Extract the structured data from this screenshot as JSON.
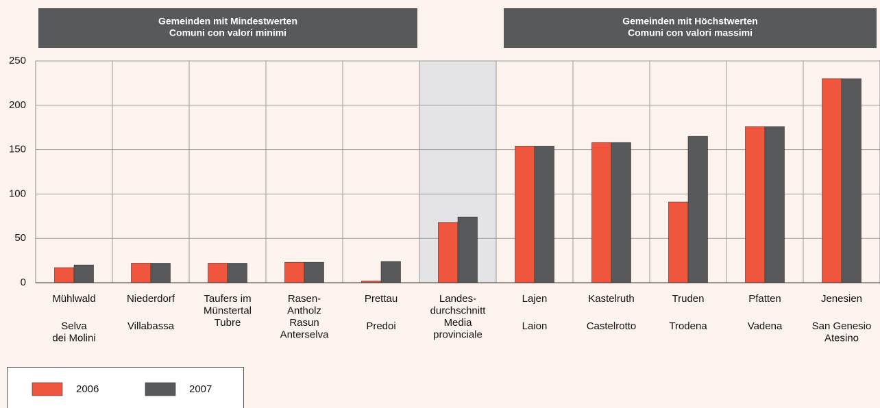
{
  "chart_data": {
    "type": "bar",
    "headers": [
      {
        "lines": [
          "Gemeinden mit Mindestwerten",
          "Comuni con valori minimi"
        ]
      },
      {
        "lines": [
          "Gemeinden mit Höchstwerten",
          "Comuni con valori massimi"
        ]
      }
    ],
    "categories": [
      {
        "de": [
          "Mühlwald"
        ],
        "it": [
          "Selva",
          "dei Molini"
        ]
      },
      {
        "de": [
          "Niederdorf"
        ],
        "it": [
          "Villabassa"
        ]
      },
      {
        "de": [
          "Taufers im",
          "Münstertal"
        ],
        "it": [
          "Tubre"
        ]
      },
      {
        "de": [
          "Rasen-",
          "Antholz"
        ],
        "it": [
          "Rasun",
          "Anterselva"
        ]
      },
      {
        "de": [
          "Prettau"
        ],
        "it": [
          "Predoi"
        ]
      },
      {
        "de": [
          "Landes-",
          "durchschnitt"
        ],
        "it": [
          "Media",
          "provinciale"
        ]
      },
      {
        "de": [
          "Lajen"
        ],
        "it": [
          "Laion"
        ]
      },
      {
        "de": [
          "Kastelruth"
        ],
        "it": [
          "Castelrotto"
        ]
      },
      {
        "de": [
          "Truden"
        ],
        "it": [
          "Trodena"
        ]
      },
      {
        "de": [
          "Pfatten"
        ],
        "it": [
          "Vadena"
        ]
      },
      {
        "de": [
          "Jenesien"
        ],
        "it": [
          "San Genesio",
          "Atesino"
        ]
      }
    ],
    "highlight_category": 5,
    "highlight_color": "#e4e4e7",
    "series": [
      {
        "name": "2006",
        "color": "#f0553d",
        "values": [
          17,
          22,
          22,
          23,
          2,
          68,
          154,
          158,
          91,
          176,
          230
        ]
      },
      {
        "name": "2007",
        "color": "#58595b",
        "values": [
          20,
          22,
          22,
          23,
          24,
          74,
          154,
          158,
          165,
          176,
          230
        ]
      }
    ],
    "ylim": [
      0,
      250
    ],
    "yticks": [
      0,
      50,
      100,
      150,
      200,
      250
    ],
    "grid": true
  }
}
